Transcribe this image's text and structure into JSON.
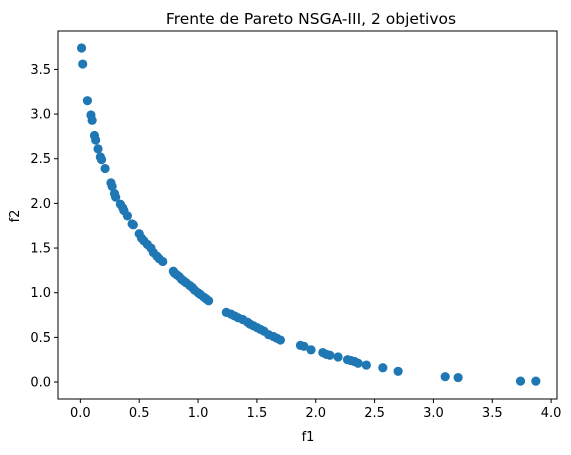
{
  "chart_data": {
    "type": "scatter",
    "title": "Frente de Pareto NSGA-III, 2 objetivos",
    "xlabel": "f1",
    "ylabel": "f2",
    "xlim": [
      -0.19,
      4.05
    ],
    "ylim": [
      -0.19,
      3.93
    ],
    "xticks": [
      0.0,
      0.5,
      1.0,
      1.5,
      2.0,
      2.5,
      3.0,
      3.5,
      4.0
    ],
    "xtick_labels": [
      "0.0",
      "0.5",
      "1.0",
      "1.5",
      "2.0",
      "2.5",
      "3.0",
      "3.5",
      "4.0"
    ],
    "yticks": [
      0.0,
      0.5,
      1.0,
      1.5,
      2.0,
      2.5,
      3.0,
      3.5
    ],
    "ytick_labels": [
      "0.0",
      "0.5",
      "1.0",
      "1.5",
      "2.0",
      "2.5",
      "3.0",
      "3.5"
    ],
    "grid": false,
    "color": "#1f77b4",
    "series": [
      {
        "x": [
          0.01,
          0.02,
          0.06,
          0.09,
          0.1,
          0.12,
          0.13,
          0.15,
          0.17,
          0.18,
          0.21,
          0.26,
          0.27,
          0.29,
          0.3,
          0.34,
          0.36,
          0.37,
          0.4,
          0.44,
          0.45,
          0.5,
          0.52,
          0.54,
          0.57,
          0.6,
          0.62,
          0.65,
          0.67,
          0.7,
          0.79,
          0.8,
          0.82,
          0.84,
          0.86,
          0.88,
          0.9,
          0.93,
          0.95,
          0.97,
          1.0,
          1.02,
          1.05,
          1.07,
          1.09,
          1.24,
          1.28,
          1.31,
          1.34,
          1.38,
          1.42,
          1.44,
          1.47,
          1.5,
          1.53,
          1.56,
          1.6,
          1.64,
          1.67,
          1.7,
          1.87,
          1.9,
          1.96,
          2.06,
          2.09,
          2.12,
          2.19,
          2.27,
          2.3,
          2.33,
          2.36,
          2.43,
          2.57,
          2.7,
          3.1,
          3.21,
          3.74,
          3.87
        ],
        "y": [
          3.74,
          3.56,
          3.15,
          2.99,
          2.93,
          2.76,
          2.71,
          2.61,
          2.52,
          2.49,
          2.39,
          2.23,
          2.19,
          2.11,
          2.07,
          1.99,
          1.95,
          1.92,
          1.86,
          1.77,
          1.76,
          1.66,
          1.61,
          1.58,
          1.54,
          1.5,
          1.45,
          1.41,
          1.38,
          1.35,
          1.24,
          1.22,
          1.2,
          1.18,
          1.15,
          1.13,
          1.11,
          1.08,
          1.06,
          1.03,
          1.0,
          0.98,
          0.95,
          0.93,
          0.91,
          0.78,
          0.76,
          0.74,
          0.72,
          0.7,
          0.67,
          0.65,
          0.63,
          0.61,
          0.59,
          0.57,
          0.53,
          0.51,
          0.49,
          0.47,
          0.41,
          0.4,
          0.36,
          0.33,
          0.31,
          0.3,
          0.28,
          0.25,
          0.24,
          0.23,
          0.21,
          0.19,
          0.16,
          0.12,
          0.06,
          0.05,
          0.01,
          0.01
        ]
      }
    ]
  }
}
